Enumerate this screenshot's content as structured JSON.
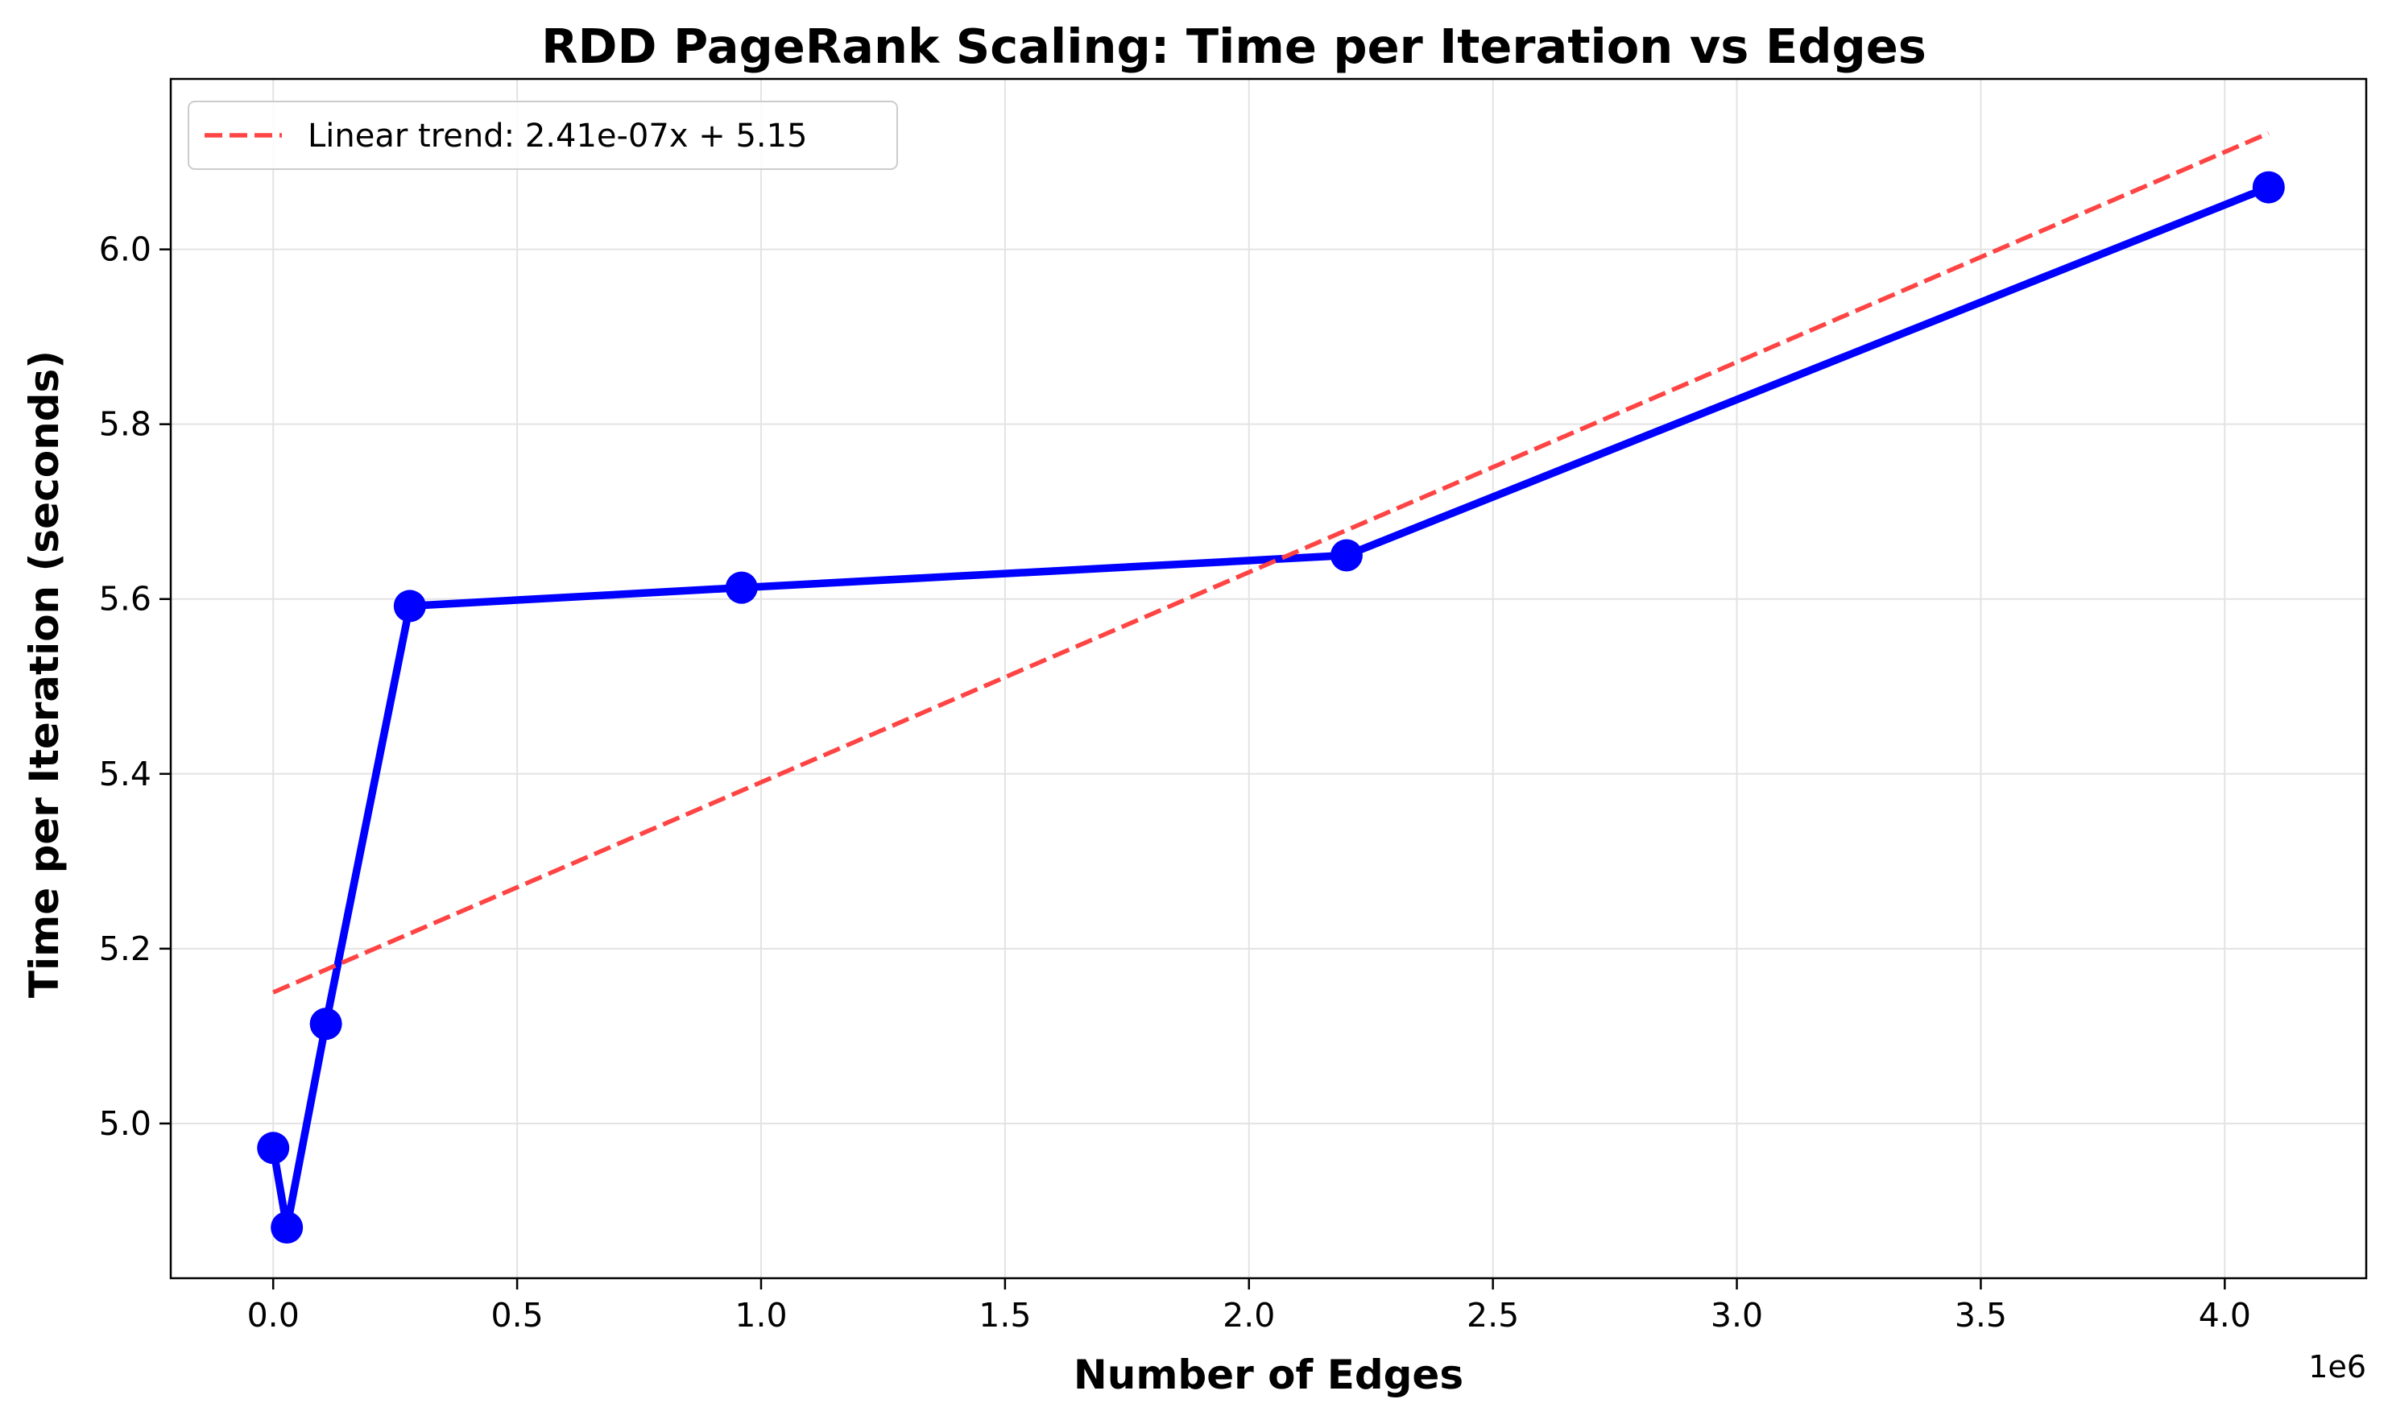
{
  "chart_data": {
    "type": "line",
    "title": "RDD PageRank Scaling: Time per Iteration vs Edges",
    "xlabel": "Number of Edges",
    "ylabel": "Time per Iteration (seconds)",
    "x_offset_label": "1e6",
    "xlim": [
      -210000,
      4290000
    ],
    "ylim": [
      4.823,
      6.195
    ],
    "xticks": [
      0,
      500000,
      1000000,
      1500000,
      2000000,
      2500000,
      3000000,
      3500000,
      4000000
    ],
    "xtick_labels": [
      "0.0",
      "0.5",
      "1.0",
      "1.5",
      "2.0",
      "2.5",
      "3.0",
      "3.5",
      "4.0"
    ],
    "yticks": [
      5.0,
      5.2,
      5.4,
      5.6,
      5.8,
      6.0
    ],
    "ytick_labels": [
      "5.0",
      "5.2",
      "5.4",
      "5.6",
      "5.8",
      "6.0"
    ],
    "grid": true,
    "legend_position": "upper left",
    "series": [
      {
        "name": "",
        "kind": "line-with-markers",
        "color": "#0000ff",
        "x": [
          0,
          28000,
          108000,
          280000,
          960000,
          2200000,
          4090000
        ],
        "y": [
          4.972,
          4.881,
          5.114,
          5.592,
          5.613,
          5.65,
          6.071
        ]
      },
      {
        "name": "Linear trend: 2.41e-07x + 5.15",
        "kind": "dashed-line",
        "color": "#ff4444",
        "x": [
          0,
          4090000
        ],
        "y": [
          5.15,
          6.133
        ]
      }
    ]
  }
}
